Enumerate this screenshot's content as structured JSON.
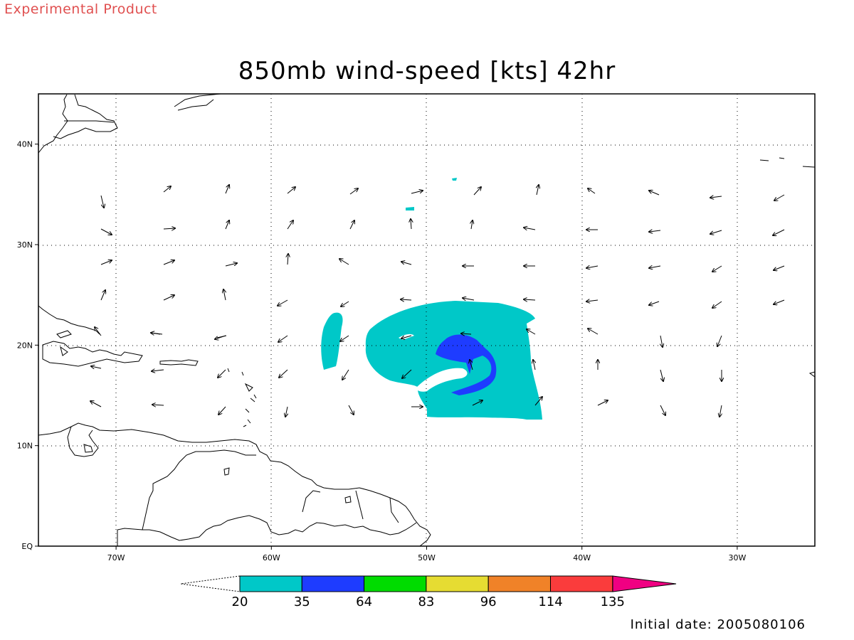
{
  "header": {
    "experimental": "Experimental Product",
    "title": "850mb wind-speed [kts] 42hr"
  },
  "footer": {
    "initial_date": "Initial date: 2005080106"
  },
  "map": {
    "lon_range": [
      -75,
      -25
    ],
    "lat_range": [
      0,
      45
    ],
    "lat_ticks": [
      {
        "value": 40,
        "label": "40N"
      },
      {
        "value": 30,
        "label": "30N"
      },
      {
        "value": 20,
        "label": "20N"
      },
      {
        "value": 10,
        "label": "10N"
      },
      {
        "value": 0,
        "label": "EQ"
      }
    ],
    "lon_ticks": [
      {
        "value": -70,
        "label": "70W"
      },
      {
        "value": -60,
        "label": "60W"
      },
      {
        "value": -50,
        "label": "50W"
      },
      {
        "value": -40,
        "label": "40W"
      },
      {
        "value": -30,
        "label": "30W"
      }
    ],
    "grid": "dotted"
  },
  "colorbar": {
    "labels": [
      "20",
      "35",
      "64",
      "83",
      "96",
      "114",
      "135"
    ],
    "colors": [
      "#00c8c8",
      "#1e3cff",
      "#00dc00",
      "#e6dc32",
      "#f08228",
      "#fa3c3c",
      "#f00082"
    ]
  },
  "wind": {
    "shading_colors": {
      "20-35": "#00c8c8",
      "35-64": "#1e3cff"
    }
  }
}
